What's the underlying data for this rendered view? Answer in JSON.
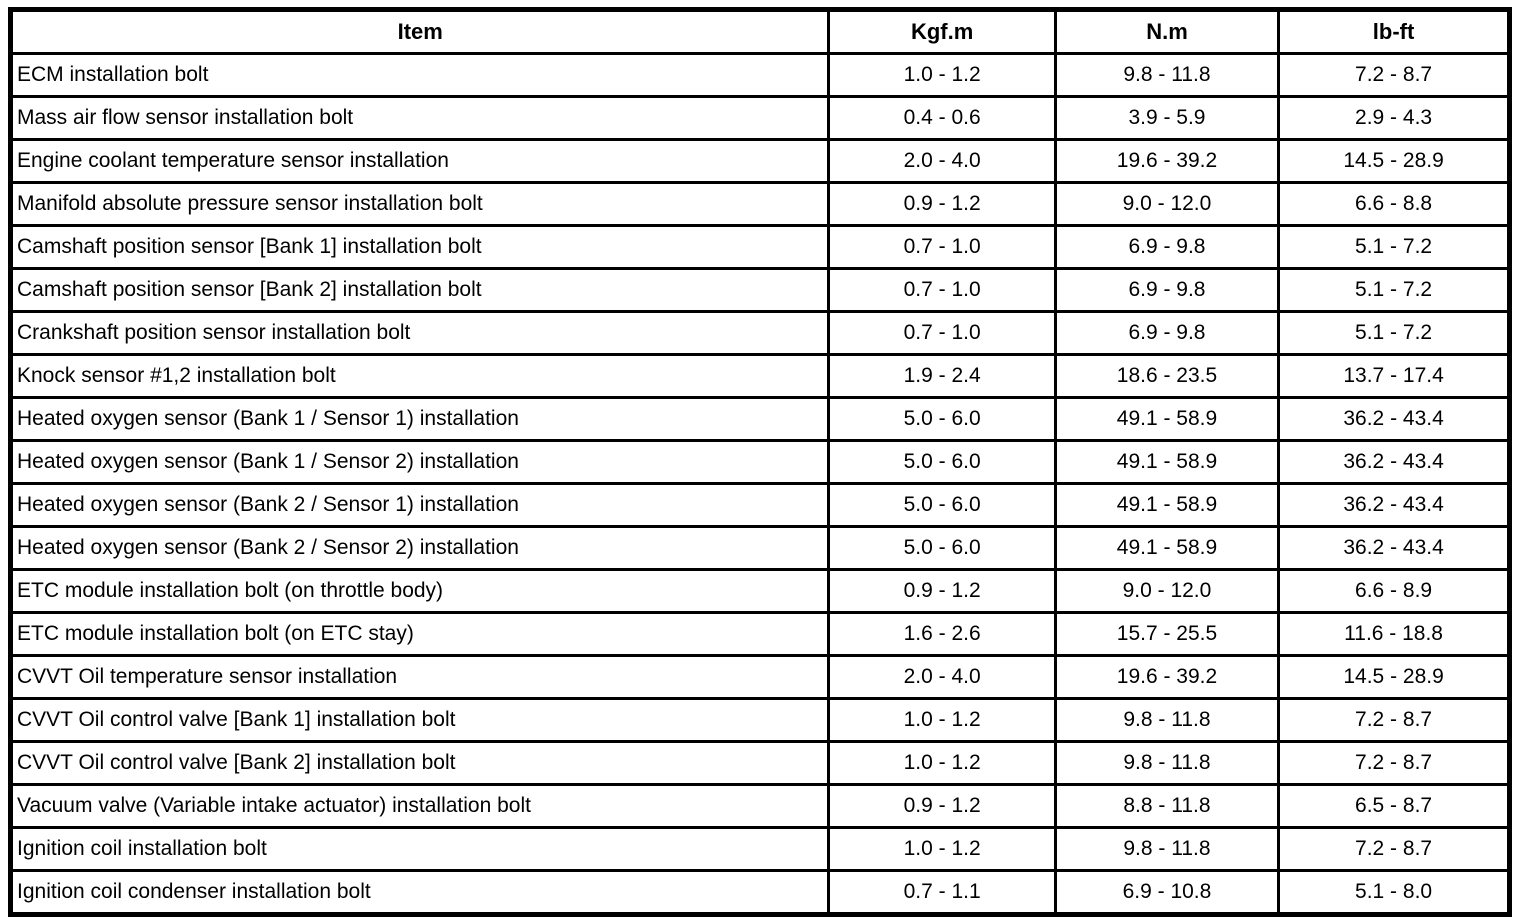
{
  "colors": {
    "background": "#ffffff",
    "border": "#000000",
    "text": "#000000"
  },
  "table": {
    "columns": [
      "Item",
      "Kgf.m",
      "N.m",
      "lb-ft"
    ],
    "rows": [
      {
        "item": "ECM installation bolt",
        "values": [
          "1.0 - 1.2",
          "9.8 - 11.8",
          "7.2 - 8.7"
        ]
      },
      {
        "item": "Mass air flow sensor installation bolt",
        "values": [
          "0.4 - 0.6",
          "3.9 - 5.9",
          "2.9 - 4.3"
        ]
      },
      {
        "item": "Engine coolant temperature sensor installation",
        "values": [
          "2.0 - 4.0",
          "19.6 - 39.2",
          "14.5 - 28.9"
        ]
      },
      {
        "item": "Manifold absolute pressure sensor installation bolt",
        "values": [
          "0.9 - 1.2",
          "9.0 - 12.0",
          "6.6 - 8.8"
        ]
      },
      {
        "item": "Camshaft position sensor [Bank 1] installation bolt",
        "values": [
          "0.7 - 1.0",
          "6.9 - 9.8",
          "5.1 - 7.2"
        ]
      },
      {
        "item": "Camshaft position sensor [Bank 2] installation bolt",
        "values": [
          "0.7 - 1.0",
          "6.9 - 9.8",
          "5.1 - 7.2"
        ]
      },
      {
        "item": "Crankshaft position sensor installation bolt",
        "values": [
          "0.7 - 1.0",
          "6.9 - 9.8",
          "5.1 - 7.2"
        ]
      },
      {
        "item": "Knock sensor #1,2 installation bolt",
        "values": [
          "1.9 - 2.4",
          "18.6 - 23.5",
          "13.7 - 17.4"
        ]
      },
      {
        "item": "Heated oxygen sensor (Bank 1 / Sensor 1) installation",
        "values": [
          "5.0 - 6.0",
          "49.1 - 58.9",
          "36.2 - 43.4"
        ]
      },
      {
        "item": "Heated oxygen sensor (Bank 1 / Sensor 2) installation",
        "values": [
          "5.0 - 6.0",
          "49.1 - 58.9",
          "36.2 - 43.4"
        ]
      },
      {
        "item": "Heated oxygen sensor (Bank 2 / Sensor 1) installation",
        "values": [
          "5.0 - 6.0",
          "49.1 - 58.9",
          "36.2 - 43.4"
        ]
      },
      {
        "item": "Heated oxygen sensor (Bank 2 / Sensor 2) installation",
        "values": [
          "5.0 - 6.0",
          "49.1 - 58.9",
          "36.2 - 43.4"
        ]
      },
      {
        "item": "ETC module installation bolt (on throttle body)",
        "values": [
          "0.9 - 1.2",
          "9.0 - 12.0",
          "6.6 - 8.9"
        ]
      },
      {
        "item": "ETC module installation bolt (on ETC stay)",
        "values": [
          "1.6 - 2.6",
          "15.7 - 25.5",
          "11.6 - 18.8"
        ]
      },
      {
        "item": "CVVT Oil temperature sensor installation",
        "values": [
          "2.0 - 4.0",
          "19.6 - 39.2",
          "14.5 - 28.9"
        ]
      },
      {
        "item": "CVVT Oil control valve [Bank 1] installation bolt",
        "values": [
          "1.0 - 1.2",
          "9.8 - 11.8",
          "7.2 - 8.7"
        ]
      },
      {
        "item": "CVVT Oil control valve [Bank 2] installation bolt",
        "values": [
          "1.0 - 1.2",
          "9.8 - 11.8",
          "7.2 - 8.7"
        ]
      },
      {
        "item": "Vacuum valve (Variable intake actuator) installation bolt",
        "values": [
          "0.9 - 1.2",
          "8.8 - 11.8",
          "6.5 - 8.7"
        ]
      },
      {
        "item": "Ignition coil installation bolt",
        "values": [
          "1.0 - 1.2",
          "9.8 - 11.8",
          "7.2 - 8.7"
        ]
      },
      {
        "item": "Ignition coil condenser installation bolt",
        "values": [
          "0.7 - 1.1",
          "6.9 - 10.8",
          "5.1 - 8.0"
        ]
      }
    ]
  }
}
